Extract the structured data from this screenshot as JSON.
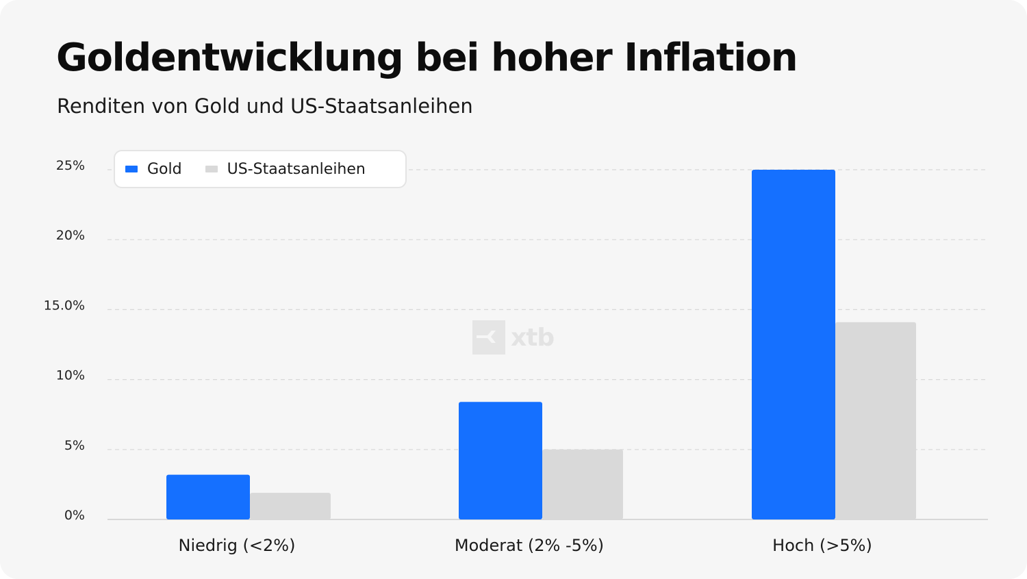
{
  "chart_data": {
    "type": "bar",
    "title": "Goldentwicklung bei hoher Inflation",
    "subtitle": "Renditen von Gold und US-Staatsanleihen",
    "categories": [
      "Niedrig (<2%)",
      "Moderat (2% -5%)",
      "Hoch (>5%)"
    ],
    "series": [
      {
        "name": "Gold",
        "color": "#1570ff",
        "values": [
          3.2,
          8.4,
          25.0
        ]
      },
      {
        "name": "US-Staatsanleihen",
        "color": "#d9d9d9",
        "values": [
          1.9,
          5.0,
          14.1
        ]
      }
    ],
    "ylim": [
      0,
      25
    ],
    "yticks": [
      {
        "value": 0,
        "label": "0%"
      },
      {
        "value": 5,
        "label": "5%"
      },
      {
        "value": 10,
        "label": "10%"
      },
      {
        "value": 15,
        "label": "15.0%"
      },
      {
        "value": 20,
        "label": "20%"
      },
      {
        "value": 25,
        "label": "25%"
      }
    ],
    "grid": true,
    "legend_position": "top-left"
  },
  "watermark": {
    "text": "xtb",
    "icon": "xtb-logo-icon"
  },
  "colors": {
    "background": "#f6f6f6",
    "gold": "#1570ff",
    "bonds": "#d9d9d9",
    "grid": "#d8d8d8"
  }
}
